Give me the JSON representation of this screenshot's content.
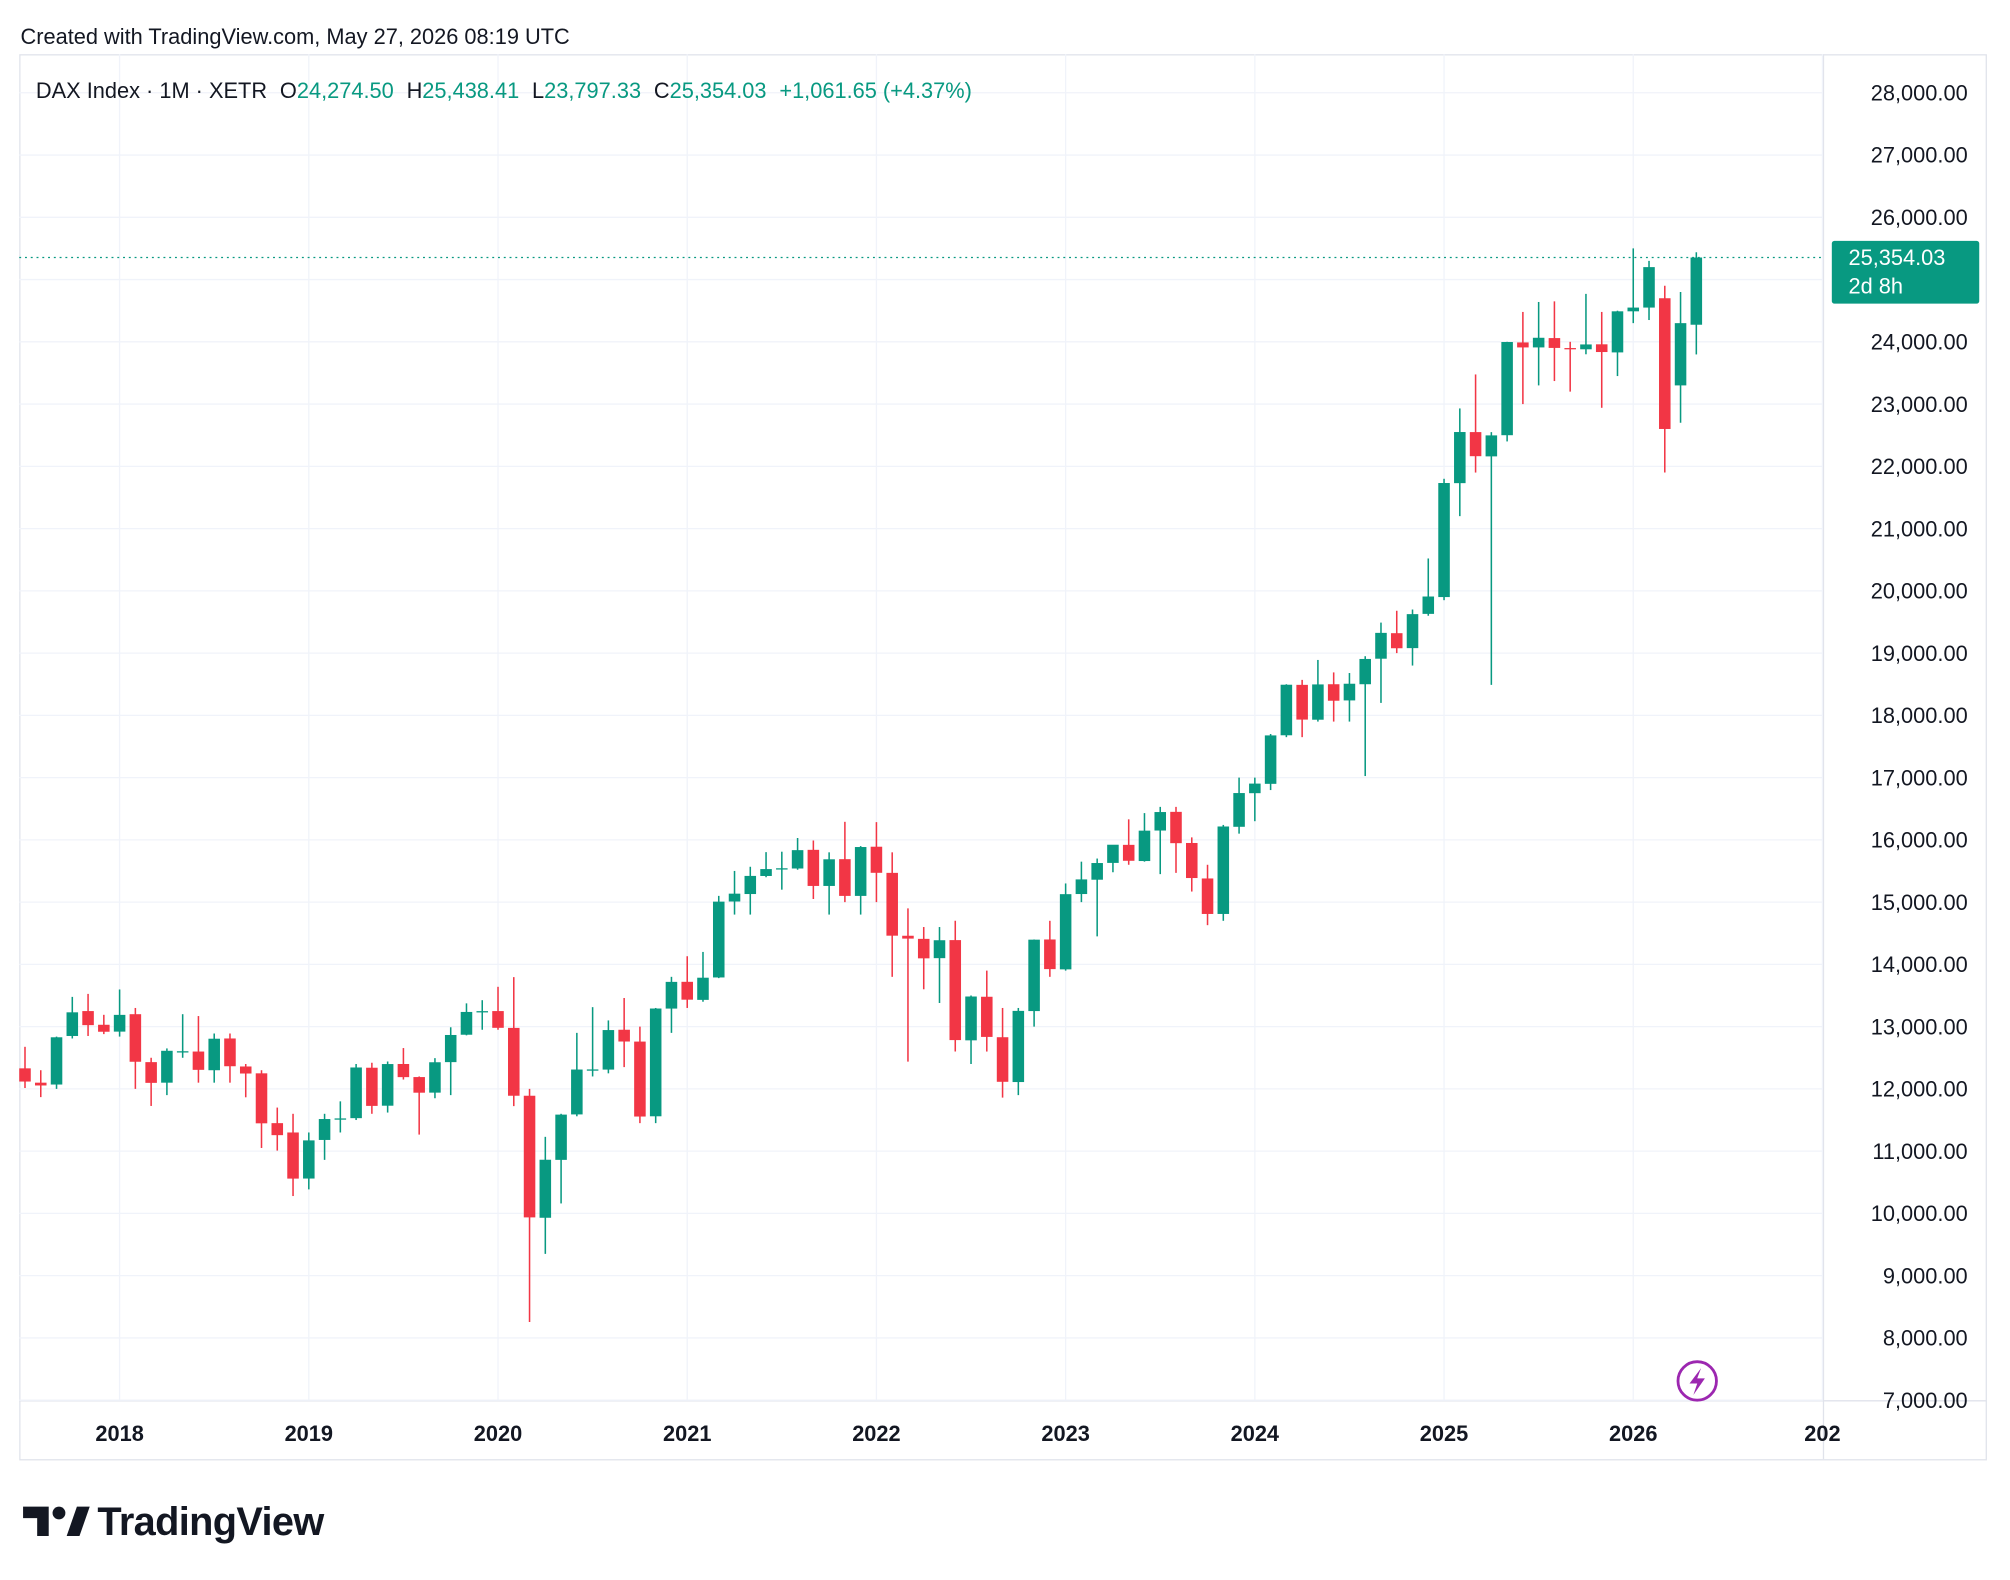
{
  "chart_data": {
    "type": "candlestick",
    "caption": "Created with TradingView.com, May 27, 2026 08:19 UTC",
    "symbol": "DAX Index · 1M · XETR",
    "legend": [
      {
        "key": "O",
        "value": "24,274.50"
      },
      {
        "key": "H",
        "value": "25,438.41"
      },
      {
        "key": "L",
        "value": "23,797.33"
      },
      {
        "key": "C",
        "value": "25,354.03"
      }
    ],
    "change": "+1,061.65 (+4.37%)",
    "countdown": "2d 8h",
    "brand": "TradingView",
    "up_color": "#089981",
    "down_color": "#f23645",
    "grid": true,
    "ylim": [
      7000,
      28620
    ],
    "yticks": [
      {
        "value": 7000,
        "label": "7,000.00"
      },
      {
        "value": 8000,
        "label": "8,000.00"
      },
      {
        "value": 9000,
        "label": "9,000.00"
      },
      {
        "value": 10000,
        "label": "10,000.00"
      },
      {
        "value": 11000,
        "label": "11,000.00"
      },
      {
        "value": 12000,
        "label": "12,000.00"
      },
      {
        "value": 13000,
        "label": "13,000.00"
      },
      {
        "value": 14000,
        "label": "14,000.00"
      },
      {
        "value": 15000,
        "label": "15,000.00"
      },
      {
        "value": 16000,
        "label": "16,000.00"
      },
      {
        "value": 17000,
        "label": "17,000.00"
      },
      {
        "value": 18000,
        "label": "18,000.00"
      },
      {
        "value": 19000,
        "label": "19,000.00"
      },
      {
        "value": 20000,
        "label": "20,000.00"
      },
      {
        "value": 21000,
        "label": "21,000.00"
      },
      {
        "value": 22000,
        "label": "22,000.00"
      },
      {
        "value": 23000,
        "label": "23,000.00"
      },
      {
        "value": 24000,
        "label": "24,000.00"
      },
      {
        "value": 25000,
        "label": "25,000.00"
      },
      {
        "value": 26000,
        "label": "26,000.00"
      },
      {
        "value": 27000,
        "label": "27,000.00"
      },
      {
        "value": 28000,
        "label": "28,000.00"
      }
    ],
    "categories": [
      null,
      null,
      null,
      null,
      null,
      null,
      "2018",
      null,
      null,
      null,
      null,
      null,
      null,
      null,
      null,
      null,
      null,
      null,
      "2019",
      null,
      null,
      null,
      null,
      null,
      null,
      null,
      null,
      null,
      null,
      null,
      "2020",
      null,
      null,
      null,
      null,
      null,
      null,
      null,
      null,
      null,
      null,
      null,
      "2021",
      null,
      null,
      null,
      null,
      null,
      null,
      null,
      null,
      null,
      null,
      null,
      "2022",
      null,
      null,
      null,
      null,
      null,
      null,
      null,
      null,
      null,
      null,
      null,
      "2023",
      null,
      null,
      null,
      null,
      null,
      null,
      null,
      null,
      null,
      null,
      null,
      "2024",
      null,
      null,
      null,
      null,
      null,
      null,
      null,
      null,
      null,
      null,
      null,
      "2025",
      null,
      null,
      null,
      null,
      null,
      null,
      null,
      null,
      null,
      null,
      null,
      "2026",
      null,
      null,
      null,
      null,
      null,
      null,
      null,
      null,
      null,
      null,
      null,
      "202"
    ],
    "ohlc": [
      [
        12330,
        12676,
        12014,
        12118
      ],
      [
        12100,
        12300,
        11868,
        12055
      ],
      [
        12070,
        12840,
        12000,
        12829
      ],
      [
        12850,
        13478,
        12810,
        13230
      ],
      [
        13250,
        13526,
        12850,
        13024
      ],
      [
        13030,
        13190,
        12880,
        12918
      ],
      [
        12920,
        13597,
        12840,
        13189
      ],
      [
        13200,
        13300,
        12000,
        12436
      ],
      [
        12430,
        12500,
        11726,
        12097
      ],
      [
        12100,
        12650,
        11900,
        12612
      ],
      [
        12600,
        13200,
        12500,
        12605
      ],
      [
        12600,
        13170,
        12100,
        12306
      ],
      [
        12300,
        12890,
        12100,
        12806
      ],
      [
        12810,
        12890,
        12100,
        12364
      ],
      [
        12360,
        12400,
        11865,
        12247
      ],
      [
        12250,
        12300,
        11051,
        11447
      ],
      [
        11450,
        11700,
        11009,
        11257
      ],
      [
        11300,
        11600,
        10279,
        10559
      ],
      [
        10560,
        11300,
        10386,
        11173
      ],
      [
        11180,
        11600,
        10860,
        11516
      ],
      [
        11520,
        11800,
        11300,
        11526
      ],
      [
        11530,
        12400,
        11500,
        12344
      ],
      [
        12340,
        12420,
        11600,
        11727
      ],
      [
        11730,
        12440,
        11620,
        12399
      ],
      [
        12400,
        12656,
        12150,
        12189
      ],
      [
        12190,
        12200,
        11266,
        11939
      ],
      [
        11940,
        12494,
        11850,
        12428
      ],
      [
        12430,
        12990,
        11900,
        12866
      ],
      [
        12870,
        13374,
        12860,
        13236
      ],
      [
        13240,
        13425,
        12950,
        13249
      ],
      [
        13250,
        13640,
        12950,
        12981
      ],
      [
        12980,
        13795,
        11724,
        11890
      ],
      [
        11890,
        12000,
        8256,
        9936
      ],
      [
        9930,
        11230,
        9350,
        10862
      ],
      [
        10860,
        11600,
        10160,
        11587
      ],
      [
        11590,
        12900,
        11560,
        12311
      ],
      [
        12310,
        13313,
        12200,
        12313
      ],
      [
        12310,
        13100,
        12250,
        12945
      ],
      [
        12950,
        13460,
        12350,
        12761
      ],
      [
        12760,
        13000,
        11450,
        11556
      ],
      [
        11560,
        13300,
        11450,
        13291
      ],
      [
        13290,
        13800,
        12900,
        13719
      ],
      [
        13720,
        14131,
        13300,
        13433
      ],
      [
        13430,
        14200,
        13400,
        13786
      ],
      [
        13790,
        15100,
        13780,
        15008
      ],
      [
        15010,
        15501,
        14800,
        15136
      ],
      [
        15130,
        15568,
        14800,
        15421
      ],
      [
        15420,
        15803,
        15400,
        15531
      ],
      [
        15530,
        15810,
        15200,
        15544
      ],
      [
        15540,
        16030,
        15520,
        15835
      ],
      [
        15840,
        15990,
        15050,
        15260
      ],
      [
        15260,
        15800,
        14800,
        15688
      ],
      [
        15690,
        16290,
        15000,
        15100
      ],
      [
        15100,
        15900,
        14800,
        15885
      ],
      [
        15890,
        16285,
        15000,
        15471
      ],
      [
        15470,
        15800,
        13800,
        14461
      ],
      [
        14460,
        14900,
        12439,
        14414
      ],
      [
        14410,
        14600,
        13600,
        14097
      ],
      [
        14100,
        14600,
        13380,
        14388
      ],
      [
        14390,
        14700,
        12600,
        12784
      ],
      [
        12780,
        13500,
        12400,
        13484
      ],
      [
        13480,
        13900,
        12600,
        12835
      ],
      [
        12830,
        13300,
        11860,
        12114
      ],
      [
        12110,
        13300,
        11900,
        13253
      ],
      [
        13250,
        14400,
        13000,
        14397
      ],
      [
        14400,
        14700,
        13800,
        13924
      ],
      [
        13920,
        15300,
        13900,
        15128
      ],
      [
        15130,
        15650,
        15000,
        15365
      ],
      [
        15360,
        15700,
        14450,
        15628
      ],
      [
        15630,
        15900,
        15480,
        15922
      ],
      [
        15920,
        16330,
        15600,
        15664
      ],
      [
        15660,
        16430,
        15650,
        16148
      ],
      [
        16150,
        16530,
        15450,
        16447
      ],
      [
        16450,
        16530,
        15470,
        15947
      ],
      [
        15950,
        16040,
        15170,
        15387
      ],
      [
        15380,
        15600,
        14630,
        14810
      ],
      [
        14810,
        16240,
        14700,
        16215
      ],
      [
        16210,
        17000,
        16100,
        16752
      ],
      [
        16750,
        17000,
        16300,
        16904
      ],
      [
        16900,
        17700,
        16800,
        17678
      ],
      [
        17680,
        18500,
        17650,
        18492
      ],
      [
        18490,
        18570,
        17650,
        17932
      ],
      [
        17930,
        18890,
        17900,
        18497
      ],
      [
        18500,
        18690,
        17900,
        18235
      ],
      [
        18240,
        18680,
        17900,
        18508
      ],
      [
        18500,
        18950,
        17025,
        18906
      ],
      [
        18910,
        19490,
        18200,
        19325
      ],
      [
        19320,
        19680,
        19000,
        19078
      ],
      [
        19080,
        19700,
        18800,
        19626
      ],
      [
        19630,
        20520,
        19600,
        19909
      ],
      [
        19900,
        21800,
        19850,
        21732
      ],
      [
        21730,
        22930,
        21200,
        22551
      ],
      [
        22550,
        23476,
        21900,
        22163
      ],
      [
        22160,
        22550,
        18490,
        22497
      ],
      [
        22500,
        24000,
        22400,
        23997
      ],
      [
        23990,
        24480,
        23000,
        23910
      ],
      [
        23910,
        24640,
        23300,
        24065
      ],
      [
        24060,
        24650,
        23370,
        23902
      ],
      [
        23900,
        24000,
        23200,
        23880
      ],
      [
        23880,
        24770,
        23800,
        23958
      ],
      [
        23960,
        24480,
        22940,
        23836
      ],
      [
        23830,
        24500,
        23450,
        24490
      ],
      [
        24490,
        25500,
        24300,
        24550
      ],
      [
        24550,
        25300,
        24350,
        25200
      ],
      [
        24700,
        24900,
        21900,
        22600
      ],
      [
        23300,
        24800,
        22700,
        24300
      ],
      [
        24274.5,
        25438.41,
        23797.33,
        25354.03
      ],
      null,
      null,
      null,
      null,
      null,
      null,
      null,
      null
    ]
  }
}
